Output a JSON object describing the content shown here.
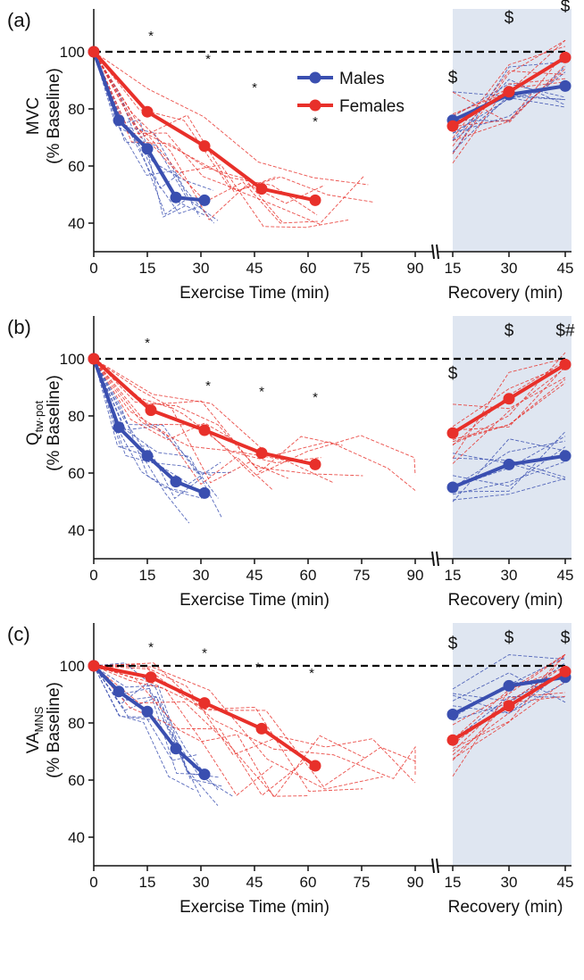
{
  "colors": {
    "males": "#3a4fb0",
    "females": "#e8302a",
    "recovery_shade": "#dfe6f1",
    "baseline": "#000000"
  },
  "legend": {
    "males": "Males",
    "females": "Females"
  },
  "chart_data": [
    {
      "type": "line",
      "panel": "(a)",
      "ylabel_main": "MVC",
      "ylabel_sub": "",
      "ylabel_paren": "(% Baseline)",
      "xlabel_exercise": "Exercise Time (min)",
      "xlabel_recovery": "Recovery (min)",
      "ylim": [
        30,
        115
      ],
      "yticks": [
        40,
        60,
        80,
        100
      ],
      "exercise_xticks": [
        0,
        15,
        30,
        45,
        60,
        75,
        90
      ],
      "recovery_xticks": [
        15,
        30,
        45
      ],
      "baseline": 100,
      "series": [
        {
          "name": "Males",
          "exercise": {
            "x": [
              0,
              7,
              15,
              23,
              31
            ],
            "y": [
              100,
              76,
              66,
              49,
              48
            ]
          },
          "recovery": {
            "x": [
              15,
              30,
              45
            ],
            "y": [
              76,
              85,
              88
            ]
          }
        },
        {
          "name": "Females",
          "exercise": {
            "x": [
              0,
              15,
              31,
              47,
              62
            ],
            "y": [
              100,
              79,
              67,
              52,
              48
            ]
          },
          "recovery": {
            "x": [
              15,
              30,
              45
            ],
            "y": [
              74,
              86,
              98
            ]
          }
        }
      ],
      "exercise_annotations": [
        {
          "x": 16,
          "y": 104,
          "text": "*"
        },
        {
          "x": 32,
          "y": 96,
          "text": "*"
        },
        {
          "x": 45,
          "y": 86,
          "text": "*"
        },
        {
          "x": 62,
          "y": 74,
          "text": "*"
        }
      ],
      "recovery_annotations": [
        {
          "x": 15,
          "y": 89,
          "text": "$"
        },
        {
          "x": 30,
          "y": 110,
          "text": "$"
        },
        {
          "x": 45,
          "y": 114,
          "text": "$"
        }
      ]
    },
    {
      "type": "line",
      "panel": "(b)",
      "ylabel_main": "Q",
      "ylabel_sub": "tw·pot",
      "ylabel_paren": "(% Baseline)",
      "xlabel_exercise": "Exercise Time (min)",
      "xlabel_recovery": "Recovery (min)",
      "ylim": [
        30,
        115
      ],
      "yticks": [
        40,
        60,
        80,
        100
      ],
      "exercise_xticks": [
        0,
        15,
        30,
        45,
        60,
        75,
        90
      ],
      "recovery_xticks": [
        15,
        30,
        45
      ],
      "baseline": 100,
      "series": [
        {
          "name": "Males",
          "exercise": {
            "x": [
              0,
              7,
              15,
              23,
              31
            ],
            "y": [
              100,
              76,
              66,
              57,
              53
            ]
          },
          "recovery": {
            "x": [
              15,
              30,
              45
            ],
            "y": [
              55,
              63,
              66
            ]
          }
        },
        {
          "name": "Females",
          "exercise": {
            "x": [
              0,
              16,
              31,
              47,
              62
            ],
            "y": [
              100,
              82,
              75,
              67,
              63
            ]
          },
          "recovery": {
            "x": [
              15,
              30,
              45
            ],
            "y": [
              74,
              86,
              98
            ]
          }
        }
      ],
      "exercise_annotations": [
        {
          "x": 15,
          "y": 104,
          "text": "*"
        },
        {
          "x": 32,
          "y": 89,
          "text": "*"
        },
        {
          "x": 47,
          "y": 87,
          "text": "*"
        },
        {
          "x": 62,
          "y": 85,
          "text": "*"
        }
      ],
      "recovery_annotations": [
        {
          "x": 15,
          "y": 93,
          "text": "$"
        },
        {
          "x": 30,
          "y": 108,
          "text": "$"
        },
        {
          "x": 45,
          "y": 108,
          "text": "$#"
        }
      ]
    },
    {
      "type": "line",
      "panel": "(c)",
      "ylabel_main": "VA",
      "ylabel_sub": "MNS",
      "ylabel_paren": "(% Baseline)",
      "xlabel_exercise": "Exercise Time (min)",
      "xlabel_recovery": "Recovery (min)",
      "ylim": [
        30,
        115
      ],
      "yticks": [
        40,
        60,
        80,
        100
      ],
      "exercise_xticks": [
        0,
        15,
        30,
        45,
        60,
        75,
        90
      ],
      "recovery_xticks": [
        15,
        30,
        45
      ],
      "baseline": 100,
      "series": [
        {
          "name": "Males",
          "exercise": {
            "x": [
              0,
              7,
              15,
              23,
              31
            ],
            "y": [
              100,
              91,
              84,
              71,
              62
            ]
          },
          "recovery": {
            "x": [
              15,
              30,
              45
            ],
            "y": [
              83,
              93,
              96
            ]
          }
        },
        {
          "name": "Females",
          "exercise": {
            "x": [
              0,
              16,
              31,
              47,
              62
            ],
            "y": [
              100,
              96,
              87,
              78,
              65
            ]
          },
          "recovery": {
            "x": [
              15,
              30,
              45
            ],
            "y": [
              74,
              86,
              98
            ]
          }
        }
      ],
      "exercise_annotations": [
        {
          "x": 16,
          "y": 105,
          "text": "*"
        },
        {
          "x": 31,
          "y": 103,
          "text": "*"
        },
        {
          "x": 46,
          "y": 98,
          "text": "*"
        },
        {
          "x": 61,
          "y": 96,
          "text": "*"
        }
      ],
      "recovery_annotations": [
        {
          "x": 15,
          "y": 106,
          "text": "$"
        },
        {
          "x": 30,
          "y": 108,
          "text": "$"
        },
        {
          "x": 45,
          "y": 108,
          "text": "$"
        }
      ]
    }
  ]
}
